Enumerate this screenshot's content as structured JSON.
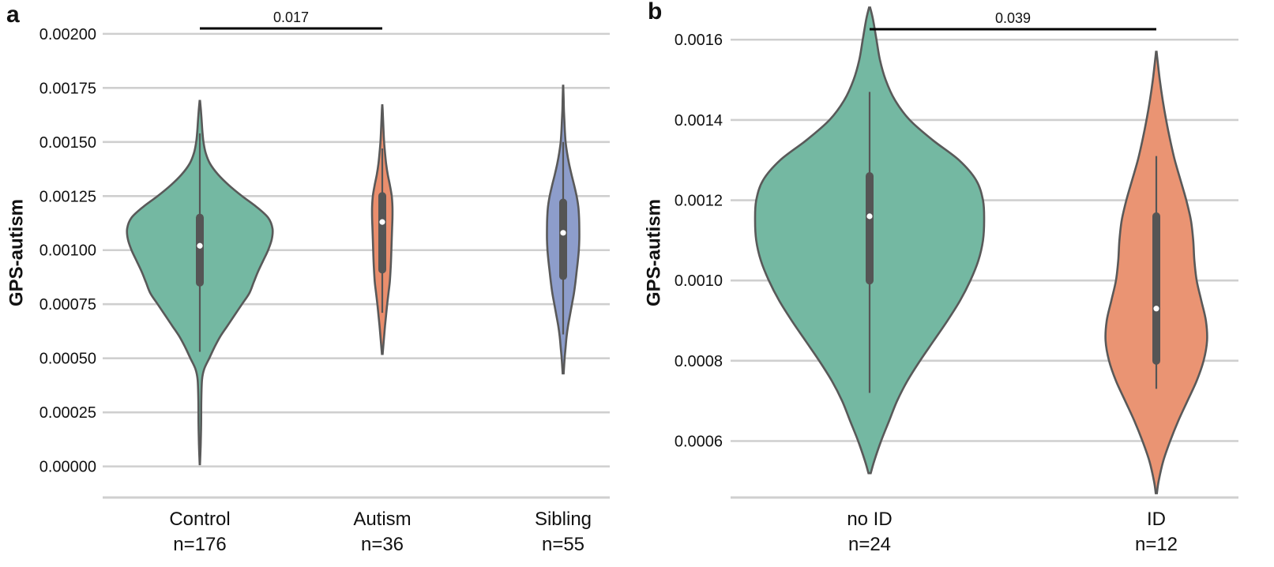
{
  "chart_data": [
    {
      "panel": "a",
      "type": "violin",
      "ylabel": "GPS-autism",
      "ylim": [
        -0.0001,
        0.00212
      ],
      "yticks": [
        {
          "value": 0.0,
          "label": "0.00000"
        },
        {
          "value": 0.00025,
          "label": "0.00025"
        },
        {
          "value": 0.0005,
          "label": "0.00050"
        },
        {
          "value": 0.00075,
          "label": "0.00075"
        },
        {
          "value": 0.001,
          "label": "0.00100"
        },
        {
          "value": 0.00125,
          "label": "0.00125"
        },
        {
          "value": 0.0015,
          "label": "0.00150"
        },
        {
          "value": 0.00175,
          "label": "0.00175"
        },
        {
          "value": 0.002,
          "label": "0.00200"
        }
      ],
      "categories": [
        {
          "name": "Control",
          "n_label": "n=176",
          "color": "#74b8a2",
          "min": 1e-05,
          "max": 0.00169,
          "q1": 0.00085,
          "median": 0.00102,
          "q3": 0.00115,
          "whisker_low": 0.00053,
          "whisker_high": 0.00154,
          "density": [
            [
              1e-05,
              0.002
            ],
            [
              0.0001,
              0.012
            ],
            [
              0.0002,
              0.018
            ],
            [
              0.0003,
              0.02
            ],
            [
              0.0004,
              0.03
            ],
            [
              0.00045,
              0.06
            ],
            [
              0.0005,
              0.13
            ],
            [
              0.00055,
              0.2
            ],
            [
              0.0006,
              0.28
            ],
            [
              0.00065,
              0.38
            ],
            [
              0.0007,
              0.48
            ],
            [
              0.00075,
              0.58
            ],
            [
              0.0008,
              0.68
            ],
            [
              0.00085,
              0.74
            ],
            [
              0.0009,
              0.8
            ],
            [
              0.00095,
              0.87
            ],
            [
              0.001,
              0.94
            ],
            [
              0.00105,
              0.99
            ],
            [
              0.0011,
              1.0
            ],
            [
              0.00115,
              0.94
            ],
            [
              0.0012,
              0.78
            ],
            [
              0.00125,
              0.58
            ],
            [
              0.0013,
              0.4
            ],
            [
              0.00135,
              0.25
            ],
            [
              0.0014,
              0.14
            ],
            [
              0.00145,
              0.08
            ],
            [
              0.0015,
              0.05
            ],
            [
              0.00155,
              0.035
            ],
            [
              0.0016,
              0.025
            ],
            [
              0.00165,
              0.014
            ],
            [
              0.00169,
              0.003
            ]
          ]
        },
        {
          "name": "Autism",
          "n_label": "n=36",
          "color": "#ea8e6d",
          "min": 0.00052,
          "max": 0.00167,
          "q1": 0.00091,
          "median": 0.00113,
          "q3": 0.00125,
          "whisker_low": 0.00071,
          "whisker_high": 0.00147,
          "density": [
            [
              0.00052,
              0.02
            ],
            [
              0.00055,
              0.05
            ],
            [
              0.0006,
              0.1
            ],
            [
              0.00065,
              0.15
            ],
            [
              0.0007,
              0.21
            ],
            [
              0.00075,
              0.27
            ],
            [
              0.0008,
              0.34
            ],
            [
              0.00085,
              0.41
            ],
            [
              0.0009,
              0.45
            ],
            [
              0.00095,
              0.48
            ],
            [
              0.001,
              0.5
            ],
            [
              0.00105,
              0.52
            ],
            [
              0.0011,
              0.54
            ],
            [
              0.00115,
              0.56
            ],
            [
              0.0012,
              0.56
            ],
            [
              0.00125,
              0.52
            ],
            [
              0.0013,
              0.42
            ],
            [
              0.00135,
              0.3
            ],
            [
              0.0014,
              0.21
            ],
            [
              0.00145,
              0.15
            ],
            [
              0.0015,
              0.1
            ],
            [
              0.00155,
              0.07
            ],
            [
              0.0016,
              0.045
            ],
            [
              0.00165,
              0.02
            ],
            [
              0.00167,
              0.005
            ]
          ]
        },
        {
          "name": "Sibling",
          "n_label": "n=55",
          "color": "#8d9dcb",
          "min": 0.00043,
          "max": 0.00176,
          "q1": 0.00088,
          "median": 0.00108,
          "q3": 0.00122,
          "whisker_low": 0.00061,
          "whisker_high": 0.0015,
          "density": [
            [
              0.00043,
              0.02
            ],
            [
              0.0005,
              0.06
            ],
            [
              0.00055,
              0.1
            ],
            [
              0.0006,
              0.14
            ],
            [
              0.00065,
              0.2
            ],
            [
              0.0007,
              0.28
            ],
            [
              0.00075,
              0.36
            ],
            [
              0.0008,
              0.44
            ],
            [
              0.00085,
              0.5
            ],
            [
              0.0009,
              0.55
            ],
            [
              0.00095,
              0.6
            ],
            [
              0.001,
              0.64
            ],
            [
              0.00105,
              0.66
            ],
            [
              0.0011,
              0.66
            ],
            [
              0.00115,
              0.65
            ],
            [
              0.0012,
              0.62
            ],
            [
              0.00125,
              0.55
            ],
            [
              0.0013,
              0.45
            ],
            [
              0.00135,
              0.34
            ],
            [
              0.0014,
              0.24
            ],
            [
              0.00145,
              0.16
            ],
            [
              0.0015,
              0.1
            ],
            [
              0.00155,
              0.07
            ],
            [
              0.0016,
              0.05
            ],
            [
              0.00165,
              0.03
            ],
            [
              0.0017,
              0.02
            ],
            [
              0.00176,
              0.005
            ]
          ]
        }
      ],
      "significance": {
        "from": "Control",
        "to": "Autism",
        "label": "0.017"
      }
    },
    {
      "panel": "b",
      "type": "violin",
      "ylabel": "GPS-autism",
      "ylim": [
        0.00042,
        0.00175
      ],
      "yticks": [
        {
          "value": 0.0006,
          "label": "0.0006"
        },
        {
          "value": 0.0008,
          "label": "0.0008"
        },
        {
          "value": 0.001,
          "label": "0.0010"
        },
        {
          "value": 0.0012,
          "label": "0.0012"
        },
        {
          "value": 0.0014,
          "label": "0.0014"
        },
        {
          "value": 0.0016,
          "label": "0.0016"
        }
      ],
      "categories": [
        {
          "name": "no ID",
          "n_label": "n=24",
          "color": "#74b8a2",
          "min": 0.00052,
          "max": 0.00168,
          "q1": 0.001,
          "median": 0.00116,
          "q3": 0.00126,
          "whisker_low": 0.00072,
          "whisker_high": 0.00147,
          "density": [
            [
              0.00052,
              0.01
            ],
            [
              0.00055,
              0.04
            ],
            [
              0.0006,
              0.1
            ],
            [
              0.00065,
              0.17
            ],
            [
              0.0007,
              0.24
            ],
            [
              0.00075,
              0.33
            ],
            [
              0.0008,
              0.44
            ],
            [
              0.00085,
              0.56
            ],
            [
              0.0009,
              0.68
            ],
            [
              0.00095,
              0.79
            ],
            [
              0.001,
              0.88
            ],
            [
              0.00105,
              0.95
            ],
            [
              0.0011,
              0.99
            ],
            [
              0.00115,
              1.0
            ],
            [
              0.0012,
              0.99
            ],
            [
              0.00125,
              0.93
            ],
            [
              0.0013,
              0.78
            ],
            [
              0.00135,
              0.55
            ],
            [
              0.0014,
              0.35
            ],
            [
              0.00145,
              0.22
            ],
            [
              0.0015,
              0.14
            ],
            [
              0.00155,
              0.09
            ],
            [
              0.0016,
              0.06
            ],
            [
              0.00165,
              0.03
            ],
            [
              0.00168,
              0.005
            ]
          ]
        },
        {
          "name": "ID",
          "n_label": "n=12",
          "color": "#ea9473",
          "min": 0.00047,
          "max": 0.00157,
          "q1": 0.0008,
          "median": 0.00093,
          "q3": 0.00116,
          "whisker_low": 0.00073,
          "whisker_high": 0.00131,
          "density": [
            [
              0.00047,
              0.01
            ],
            [
              0.0005,
              0.04
            ],
            [
              0.00055,
              0.12
            ],
            [
              0.0006,
              0.24
            ],
            [
              0.00065,
              0.38
            ],
            [
              0.0007,
              0.54
            ],
            [
              0.00075,
              0.7
            ],
            [
              0.0008,
              0.82
            ],
            [
              0.00085,
              0.88
            ],
            [
              0.0009,
              0.86
            ],
            [
              0.00095,
              0.78
            ],
            [
              0.001,
              0.7
            ],
            [
              0.00105,
              0.66
            ],
            [
              0.0011,
              0.64
            ],
            [
              0.00115,
              0.6
            ],
            [
              0.0012,
              0.52
            ],
            [
              0.00125,
              0.42
            ],
            [
              0.0013,
              0.32
            ],
            [
              0.00135,
              0.24
            ],
            [
              0.0014,
              0.17
            ],
            [
              0.00145,
              0.11
            ],
            [
              0.0015,
              0.06
            ],
            [
              0.00155,
              0.02
            ],
            [
              0.00157,
              0.005
            ]
          ]
        }
      ],
      "significance": {
        "from": "no ID",
        "to": "ID",
        "label": "0.039"
      }
    }
  ]
}
